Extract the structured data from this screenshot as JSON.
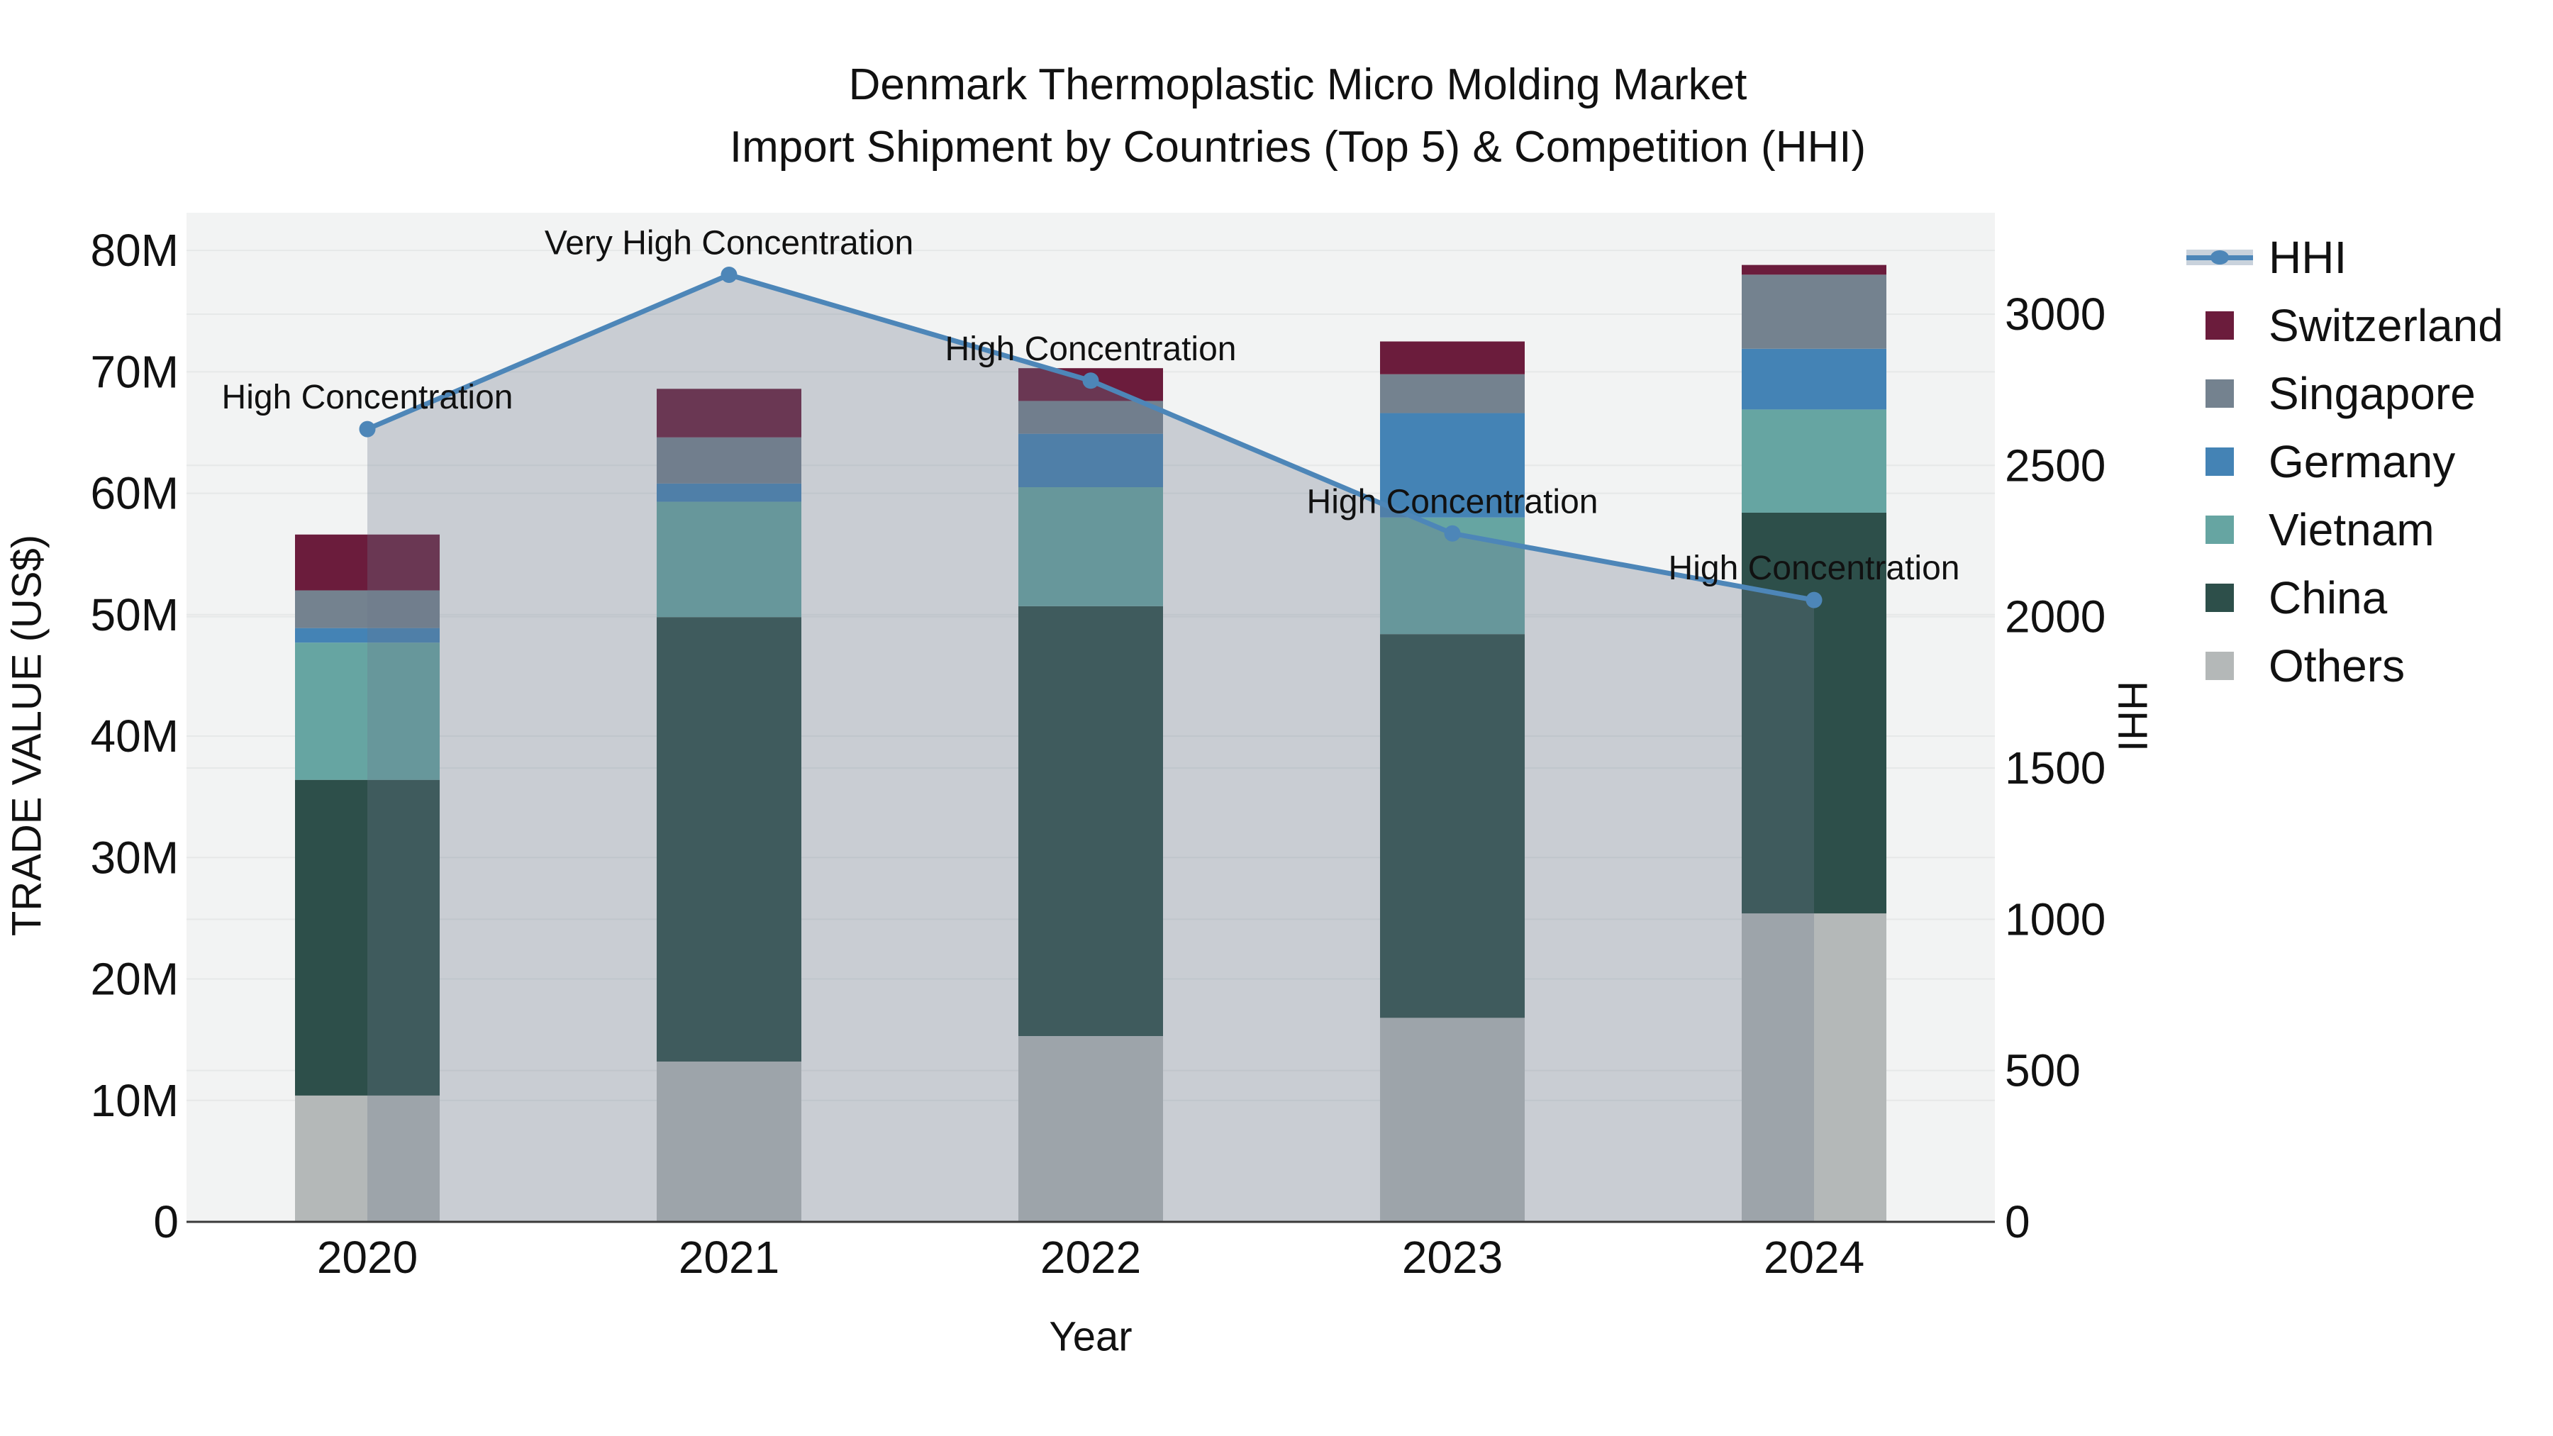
{
  "chart_data": {
    "type": "bar+line",
    "title_line1": "Denmark Thermoplastic Micro Molding Market",
    "title_line2": "Import Shipment by Countries (Top 5) & Competition (HHI)",
    "categories": [
      "2020",
      "2021",
      "2022",
      "2023",
      "2024"
    ],
    "series": [
      {
        "name": "Others",
        "color": "#b4b8b8",
        "values": [
          10.4,
          13.2,
          15.3,
          16.8,
          25.4
        ]
      },
      {
        "name": "China",
        "color": "#2d4f4a",
        "values": [
          26.0,
          36.6,
          35.4,
          31.6,
          33.0
        ]
      },
      {
        "name": "Vietnam",
        "color": "#66a5a2",
        "values": [
          11.3,
          9.5,
          9.8,
          9.6,
          8.5
        ]
      },
      {
        "name": "Germany",
        "color": "#4483b5",
        "values": [
          1.2,
          1.5,
          4.4,
          8.6,
          5.0
        ]
      },
      {
        "name": "Singapore",
        "color": "#74828f",
        "values": [
          3.1,
          3.8,
          2.7,
          3.2,
          6.1
        ]
      },
      {
        "name": "Switzerland",
        "color": "#6b1c3c",
        "values": [
          4.6,
          4.0,
          2.7,
          2.7,
          0.8
        ]
      }
    ],
    "line": {
      "name": "HHI",
      "color": "#4d86b8",
      "area_fill": "rgba(105,118,140,0.30)",
      "values": [
        2620,
        3130,
        2780,
        2275,
        2055
      ]
    },
    "annotations": [
      "High Concentration",
      "Very High Concentration",
      "High Concentration",
      "High Concentration",
      "High Concentration"
    ],
    "left_axis": {
      "title": "TRADE VALUE (US$)",
      "ticks": [
        "0",
        "10M",
        "20M",
        "30M",
        "40M",
        "50M",
        "60M",
        "70M",
        "80M"
      ],
      "tick_values": [
        0,
        10,
        20,
        30,
        40,
        50,
        60,
        70,
        80
      ],
      "max": 83.1
    },
    "right_axis": {
      "title": "HHI",
      "ticks": [
        "0",
        "500",
        "1000",
        "1500",
        "2000",
        "2500",
        "3000"
      ],
      "tick_values": [
        0,
        500,
        1000,
        1500,
        2000,
        2500,
        3000
      ],
      "max": 3335
    },
    "x_axis": {
      "title": "Year"
    },
    "legend": [
      {
        "label": "HHI",
        "type": "line",
        "color": "#4d86b8"
      },
      {
        "label": "Switzerland",
        "type": "swatch",
        "color": "#6b1c3c"
      },
      {
        "label": "Singapore",
        "type": "swatch",
        "color": "#74828f"
      },
      {
        "label": "Germany",
        "type": "swatch",
        "color": "#4483b5"
      },
      {
        "label": "Vietnam",
        "type": "swatch",
        "color": "#66a5a2"
      },
      {
        "label": "China",
        "type": "swatch",
        "color": "#2d4f4a"
      },
      {
        "label": "Others",
        "type": "swatch",
        "color": "#b4b8b8"
      }
    ],
    "plot_style": {
      "plot_bg": "#f2f3f3",
      "grid_color": "#e6e8e8",
      "axis_line_color": "#3a3a3a",
      "text_color": "#111111"
    }
  }
}
